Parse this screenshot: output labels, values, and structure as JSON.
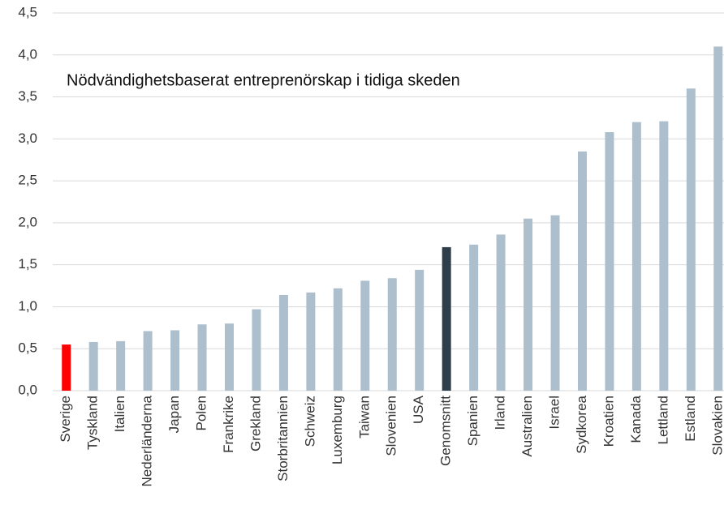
{
  "chart_data": {
    "type": "bar",
    "title": "Nödvändighetsbaserat entreprenörskap i tidiga skeden",
    "categories": [
      "Sverige",
      "Tyskland",
      "Italien",
      "Nederländerna",
      "Japan",
      "Polen",
      "Frankrike",
      "Grekland",
      "Storbritannien",
      "Schweiz",
      "Luxemburg",
      "Taiwan",
      "Slovenien",
      "USA",
      "Genomsnitt",
      "Spanien",
      "Irland",
      "Australien",
      "Israel",
      "Sydkorea",
      "Kroatien",
      "Kanada",
      "Lettland",
      "Estland",
      "Slovakien"
    ],
    "values": [
      0.55,
      0.58,
      0.59,
      0.71,
      0.72,
      0.79,
      0.8,
      0.97,
      1.14,
      1.17,
      1.22,
      1.31,
      1.34,
      1.44,
      1.71,
      1.74,
      1.86,
      2.05,
      2.09,
      2.85,
      3.08,
      3.2,
      3.21,
      3.6,
      4.1
    ],
    "colors": [
      "#ff0000",
      "#adbfcc",
      "#adbfcc",
      "#adbfcc",
      "#adbfcc",
      "#adbfcc",
      "#adbfcc",
      "#adbfcc",
      "#adbfcc",
      "#adbfcc",
      "#adbfcc",
      "#adbfcc",
      "#adbfcc",
      "#adbfcc",
      "#2f3e4b",
      "#adbfcc",
      "#adbfcc",
      "#adbfcc",
      "#adbfcc",
      "#adbfcc",
      "#adbfcc",
      "#adbfcc",
      "#adbfcc",
      "#adbfcc",
      "#adbfcc"
    ],
    "ylim": [
      0,
      4.5
    ],
    "yticks": [
      {
        "value": 0,
        "label": "0,0"
      },
      {
        "value": 0.5,
        "label": "0,5"
      },
      {
        "value": 1,
        "label": "1,0"
      },
      {
        "value": 1.5,
        "label": "1,5"
      },
      {
        "value": 2,
        "label": "2,0"
      },
      {
        "value": 2.5,
        "label": "2,5"
      },
      {
        "value": 3,
        "label": "3,0"
      },
      {
        "value": 3.5,
        "label": "3,5"
      },
      {
        "value": 4,
        "label": "4,0"
      },
      {
        "value": 4.5,
        "label": "4,5"
      }
    ],
    "grid": true
  }
}
